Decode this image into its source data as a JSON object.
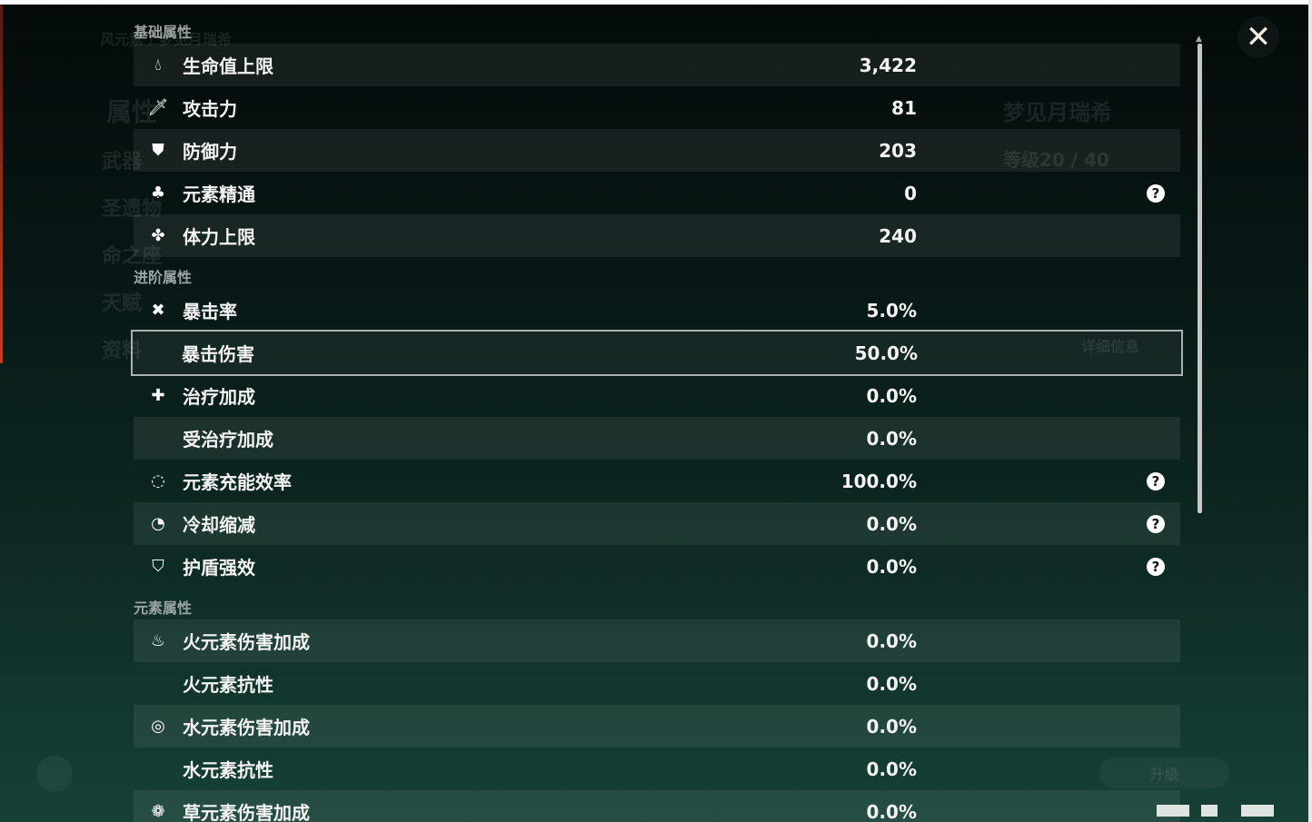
{
  "background": {
    "title": "风元素 / 梦见月瑞希",
    "menu": [
      "属性",
      "武器",
      "圣遗物",
      "命之座",
      "天赋",
      "资料"
    ],
    "character_name": "梦见月瑞希",
    "level": "等级20 / 40",
    "details_button": "详细信息",
    "upgrade_button": "升级",
    "summary": [
      [
        "生命值上限",
        "3,422"
      ],
      [
        "攻击力",
        "81"
      ],
      [
        "防御力",
        "203"
      ],
      [
        "元素精通",
        "0"
      ],
      [
        "体力上限",
        "240"
      ]
    ]
  },
  "sections": {
    "basic": "基础属性",
    "advanced": "进阶属性",
    "elemental": "元素属性"
  },
  "basic": [
    {
      "icon": "hp-drop-icon",
      "label": "生命值上限",
      "value": "3,422"
    },
    {
      "icon": "sword-icon",
      "label": "攻击力",
      "value": "81"
    },
    {
      "icon": "shield-icon",
      "label": "防御力",
      "value": "203"
    },
    {
      "icon": "elemental-mastery-icon",
      "label": "元素精通",
      "value": "0",
      "help": true
    },
    {
      "icon": "stamina-icon",
      "label": "体力上限",
      "value": "240"
    }
  ],
  "advanced": [
    {
      "icon": "crit-rate-icon",
      "label": "暴击率",
      "value": "5.0%"
    },
    {
      "icon": "",
      "label": "暴击伤害",
      "value": "50.0%",
      "selected": true
    },
    {
      "icon": "healing-cross-icon",
      "label": "治疗加成",
      "value": "0.0%"
    },
    {
      "icon": "",
      "label": "受治疗加成",
      "value": "0.0%"
    },
    {
      "icon": "energy-recharge-icon",
      "label": "元素充能效率",
      "value": "100.0%",
      "help": true
    },
    {
      "icon": "cooldown-icon",
      "label": "冷却缩减",
      "value": "0.0%",
      "help": true
    },
    {
      "icon": "shield-strength-icon",
      "label": "护盾强效",
      "value": "0.0%",
      "help": true
    }
  ],
  "elemental": [
    {
      "icon": "pyro-icon",
      "label": "火元素伤害加成",
      "value": "0.0%"
    },
    {
      "icon": "",
      "label": "火元素抗性",
      "value": "0.0%"
    },
    {
      "icon": "hydro-icon",
      "label": "水元素伤害加成",
      "value": "0.0%"
    },
    {
      "icon": "",
      "label": "水元素抗性",
      "value": "0.0%"
    },
    {
      "icon": "dendro-icon",
      "label": "草元素伤害加成",
      "value": "0.0%"
    }
  ],
  "help_glyph": "?",
  "close_glyph": "✕"
}
